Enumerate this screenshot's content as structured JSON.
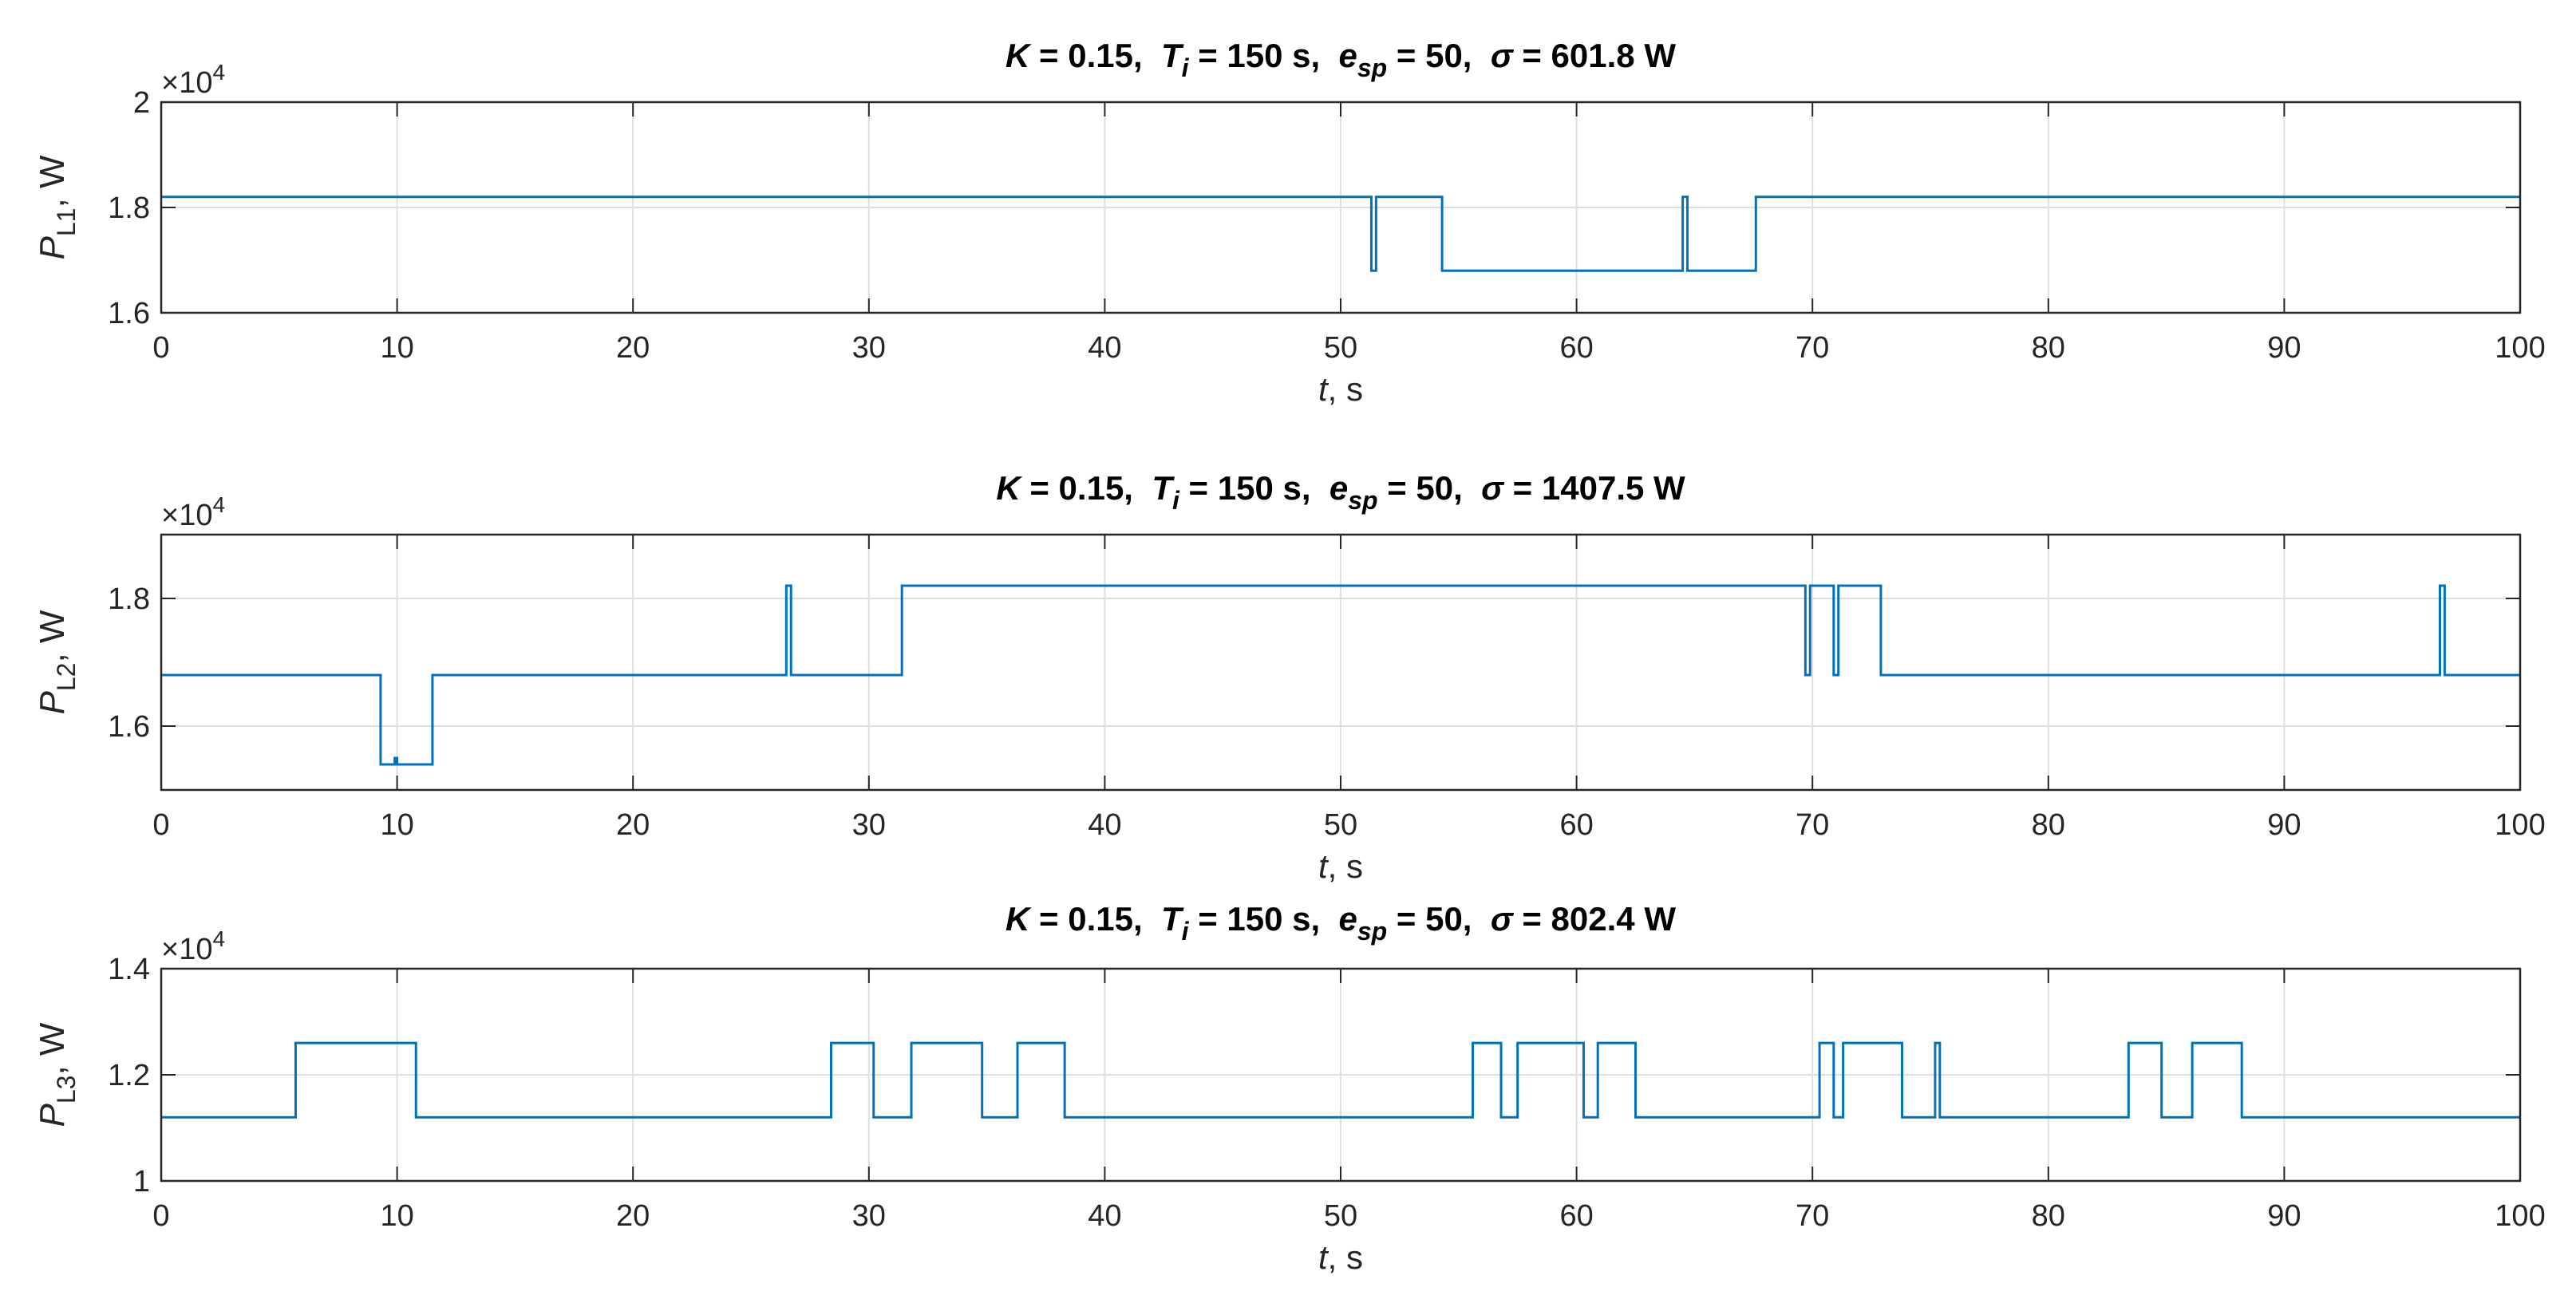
{
  "chart_data": [
    {
      "type": "line",
      "title": {
        "K": "K",
        "eq1": " = 0.15,  ",
        "T": "T",
        "Tsub": "i",
        "eq2": " = 150 s,  ",
        "e": "e",
        "esub": "sp",
        "eq3": " = 50,  ",
        "sigma": "σ",
        "eq4": " = 601.8 W"
      },
      "xlabel": {
        "var": "t",
        "unit": ", s"
      },
      "ylabel": {
        "var": "P",
        "sub": "L1",
        "unit": ", W"
      },
      "exponent_label": {
        "base": "×10",
        "power": "4"
      },
      "xlim": [
        0,
        100
      ],
      "ylim": [
        16000,
        20000
      ],
      "xticks": [
        0,
        10,
        20,
        30,
        40,
        50,
        60,
        70,
        80,
        90,
        100
      ],
      "yticks": [
        16000,
        18000,
        20000
      ],
      "ytick_labels": [
        "1.6",
        "1.8",
        "2"
      ],
      "grid": true,
      "series": [
        {
          "color": "#0072BD",
          "x": [
            0,
            51.3,
            51.3,
            51.5,
            51.5,
            54.3,
            54.3,
            64.5,
            64.5,
            64.7,
            64.7,
            67.6,
            67.6,
            100
          ],
          "y": [
            18200,
            18200,
            16800,
            16800,
            18200,
            18200,
            16800,
            16800,
            18200,
            18200,
            16800,
            16800,
            18200,
            18200
          ]
        }
      ]
    },
    {
      "type": "line",
      "title": {
        "K": "K",
        "eq1": " = 0.15,  ",
        "T": "T",
        "Tsub": "i",
        "eq2": " = 150 s,  ",
        "e": "e",
        "esub": "sp",
        "eq3": " = 50,  ",
        "sigma": "σ",
        "eq4": " = 1407.5 W"
      },
      "xlabel": {
        "var": "t",
        "unit": ", s"
      },
      "ylabel": {
        "var": "P",
        "sub": "L2",
        "unit": ", W"
      },
      "exponent_label": {
        "base": "×10",
        "power": "4"
      },
      "xlim": [
        0,
        100
      ],
      "ylim": [
        15000,
        19000
      ],
      "xticks": [
        0,
        10,
        20,
        30,
        40,
        50,
        60,
        70,
        80,
        90,
        100
      ],
      "yticks": [
        16000,
        18000
      ],
      "ytick_labels": [
        "1.6",
        "1.8"
      ],
      "grid": true,
      "series": [
        {
          "color": "#0072BD",
          "x": [
            0,
            9.3,
            9.3,
            9.9,
            9.9,
            10.0,
            10.0,
            11.5,
            11.5,
            26.5,
            26.5,
            26.7,
            26.7,
            31.4,
            31.4,
            69.7,
            69.7,
            69.9,
            69.9,
            70.9,
            70.9,
            71.1,
            71.1,
            72.9,
            72.9,
            96.6,
            96.6,
            96.8,
            96.8,
            100
          ],
          "y": [
            16800,
            16800,
            15400,
            15400,
            15500,
            15500,
            15400,
            15400,
            16800,
            16800,
            18200,
            18200,
            16800,
            16800,
            18200,
            18200,
            16800,
            16800,
            18200,
            18200,
            16800,
            16800,
            18200,
            18200,
            16800,
            16800,
            18200,
            18200,
            16800,
            16800
          ]
        }
      ]
    },
    {
      "type": "line",
      "title": {
        "K": "K",
        "eq1": " = 0.15,  ",
        "T": "T",
        "Tsub": "i",
        "eq2": " = 150 s,  ",
        "e": "e",
        "esub": "sp",
        "eq3": " = 50,  ",
        "sigma": "σ",
        "eq4": " = 802.4 W"
      },
      "xlabel": {
        "var": "t",
        "unit": ", s"
      },
      "ylabel": {
        "var": "P",
        "sub": "L3",
        "unit": ", W"
      },
      "exponent_label": {
        "base": "×10",
        "power": "4"
      },
      "xlim": [
        0,
        100
      ],
      "ylim": [
        10000,
        14000
      ],
      "xticks": [
        0,
        10,
        20,
        30,
        40,
        50,
        60,
        70,
        80,
        90,
        100
      ],
      "yticks": [
        10000,
        12000,
        14000
      ],
      "ytick_labels": [
        "1",
        "1.2",
        "1.4"
      ],
      "grid": true,
      "series": [
        {
          "color": "#0072BD",
          "x": [
            0,
            5.7,
            5.7,
            10.8,
            10.8,
            28.4,
            28.4,
            30.2,
            30.2,
            31.8,
            31.8,
            34.8,
            34.8,
            36.3,
            36.3,
            38.3,
            38.3,
            55.6,
            55.6,
            56.8,
            56.8,
            57.5,
            57.5,
            60.3,
            60.3,
            60.9,
            60.9,
            62.5,
            62.5,
            70.3,
            70.3,
            70.9,
            70.9,
            71.3,
            71.3,
            73.8,
            73.8,
            75.2,
            75.2,
            75.4,
            75.4,
            83.4,
            83.4,
            84.8,
            84.8,
            86.1,
            86.1,
            88.2,
            88.2,
            100
          ],
          "y": [
            11200,
            11200,
            12600,
            12600,
            11200,
            11200,
            12600,
            12600,
            11200,
            11200,
            12600,
            12600,
            11200,
            11200,
            12600,
            12600,
            11200,
            11200,
            12600,
            12600,
            11200,
            11200,
            12600,
            12600,
            11200,
            11200,
            12600,
            12600,
            11200,
            11200,
            12600,
            12600,
            11200,
            11200,
            12600,
            12600,
            11200,
            11200,
            12600,
            12600,
            11200,
            11200,
            12600,
            12600,
            11200,
            11200,
            12600,
            12600,
            11200,
            11200
          ]
        }
      ]
    }
  ]
}
